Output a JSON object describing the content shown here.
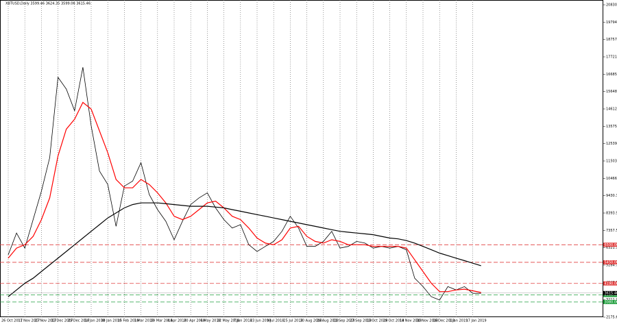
{
  "chart_data": {
    "type": "line",
    "title": "XBTUSD,Daily 3599.46 3624.35 3599.06 3615.46",
    "categories": [
      "26 Oct 2017",
      null,
      "11 Nov 2017",
      null,
      "27 Nov 2017",
      null,
      "13 Dec 2017",
      null,
      "29 Dec 2017",
      null,
      "14 Jan 2018",
      null,
      "30 Jan 2018",
      null,
      "15 Feb 2018",
      null,
      "3 Mar 2018",
      null,
      "19 Mar 2018",
      null,
      "4 Apr 2018",
      null,
      "20 Apr 2018",
      null,
      "6 May 2018",
      null,
      "22 May 2018",
      null,
      "7 Jun 2018",
      null,
      "23 Jun 2018",
      null,
      "9 Jul 2018",
      null,
      "25 Jul 2018",
      null,
      "10 Aug 2018",
      null,
      "26 Aug 2018",
      null,
      "11 Sep 2018",
      null,
      "27 Sep 2018",
      null,
      "13 Oct 2018",
      null,
      "29 Oct 2018",
      null,
      "14 Nov 2018",
      null,
      "30 Nov 2018",
      null,
      "16 Dec 2018",
      null,
      "1 Jan 2019",
      null,
      "17 Jan 2019",
      null
    ],
    "series": [
      {
        "color": "#000000",
        "values": [
          5900,
          7200,
          6300,
          8000,
          9700,
          11700,
          16500,
          15800,
          14500,
          17100,
          13600,
          10900,
          10100,
          7600,
          10000,
          10300,
          11400,
          9500,
          8600,
          7900,
          6800,
          7900,
          8900,
          9300,
          9600,
          8700,
          8000,
          7500,
          7700,
          6500,
          6100,
          6400,
          6700,
          7300,
          8200,
          7500,
          6400,
          6400,
          6700,
          7300,
          6300,
          6400,
          6700,
          6600,
          6300,
          6400,
          6300,
          6400,
          6200,
          4500,
          4000,
          3400,
          3200,
          4000,
          3800,
          4000,
          3600,
          3600
        ]
      },
      {
        "color": "#ff0000",
        "values": [
          5700,
          6300,
          6500,
          7000,
          8000,
          9300,
          11800,
          13400,
          14000,
          15000,
          14600,
          13300,
          12000,
          10400,
          9900,
          9900,
          10400,
          10100,
          9600,
          9000,
          8200,
          8000,
          8200,
          8600,
          9000,
          9100,
          8700,
          8200,
          8000,
          7500,
          6900,
          6600,
          6500,
          6800,
          7500,
          7600,
          7000,
          6700,
          6600,
          6800,
          6700,
          6500,
          6500,
          6500,
          6400,
          6400,
          6400,
          6400,
          6300,
          5600,
          4900,
          4200,
          3700,
          3700,
          3800,
          3850,
          3750,
          3650
        ]
      },
      {
        "color": "#000000",
        "values": [
          3400,
          3800,
          4200,
          4500,
          4900,
          5300,
          5700,
          6100,
          6500,
          6900,
          7300,
          7700,
          8100,
          8400,
          8700,
          8900,
          9000,
          9000,
          9000,
          8950,
          8900,
          8850,
          8800,
          8800,
          8800,
          8750,
          8700,
          8600,
          8500,
          8400,
          8300,
          8200,
          8100,
          8000,
          7900,
          7800,
          7700,
          7600,
          7500,
          7400,
          7300,
          7250,
          7200,
          7150,
          7100,
          7000,
          6900,
          6850,
          6750,
          6600,
          6400,
          6200,
          6000,
          5850,
          5700,
          5550,
          5400,
          5250
        ]
      }
    ],
    "ylim": [
      2175.6,
      20830.65
    ],
    "yticks": [
      {
        "value": 2175.6,
        "label": "2175.60"
      },
      3211.99,
      4248.38,
      5284.78,
      6321.17,
      7357.56,
      8393.95,
      9430.34,
      10466.73,
      11503.13,
      12539.52,
      13575.91,
      {
        "value": 14612.3,
        "label": "14612.30"
      },
      15648.69,
      16685.08,
      17721.47,
      18757.86,
      19794.26,
      20830.65
    ],
    "levels": [
      {
        "value": 6500,
        "label": "6500.00",
        "color": "#e03c3c"
      },
      {
        "value": 5450,
        "label": "5450.00",
        "color": "#e03c3c"
      },
      {
        "value": 4190,
        "label": "4190.00",
        "color": "#e03c3c"
      },
      {
        "value": 3500,
        "label": "3500.00",
        "color": "#1e9e3c"
      },
      {
        "value": 3080,
        "label": "3080.00",
        "color": "#1e9e3c"
      }
    ],
    "last_price": {
      "value": 3615.46,
      "label": "3615.46"
    },
    "grid": true
  }
}
